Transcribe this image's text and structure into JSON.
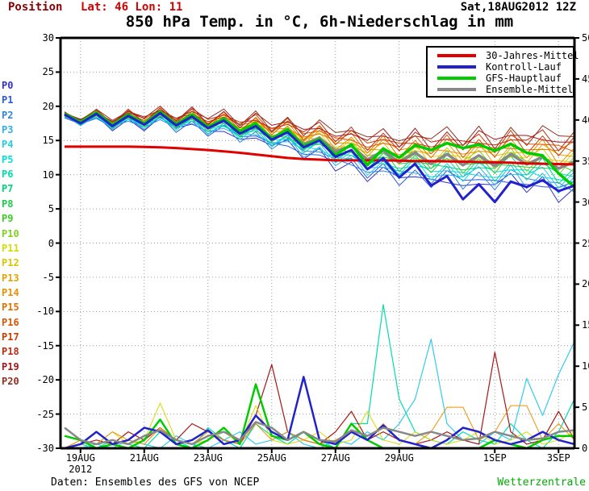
{
  "header": {
    "position_label": "Position",
    "coords": "Lat: 46 Lon: 11",
    "datetime": "Sat,18AUG2012 12Z",
    "position_color": "#8b0000",
    "coords_color": "#cc0000"
  },
  "title": "850 hPa Temp. in °C, 6h-Niederschlag in mm",
  "footer": {
    "source": "Daten: Ensembles des GFS von NCEP",
    "brand": "Wetterzentrale",
    "brand_color": "#00aa00"
  },
  "legend": {
    "items": [
      {
        "label": "30-Jahres-Mittel",
        "color": "#e00000"
      },
      {
        "label": "Kontroll-Lauf",
        "color": "#2222cc"
      },
      {
        "label": "GFS-Hauptlauf",
        "color": "#00cc00"
      },
      {
        "label": "Ensemble-Mittel",
        "color": "#888888"
      }
    ]
  },
  "chart_data": {
    "type": "line",
    "title": "850 hPa Temp. in °C, 6h-Niederschlag in mm",
    "x_step_days": 0.5,
    "x_total_days": 16,
    "xticks": [
      {
        "label": "19AUG",
        "t": 0.5
      },
      {
        "label": "21AUG",
        "t": 2.5
      },
      {
        "label": "23AUG",
        "t": 4.5
      },
      {
        "label": "25AUG",
        "t": 6.5
      },
      {
        "label": "27AUG",
        "t": 8.5
      },
      {
        "label": "29AUG",
        "t": 10.5
      },
      {
        "label": "1SEP",
        "t": 13.5
      },
      {
        "label": "3SEP",
        "t": 15.5
      }
    ],
    "year_label": "2012",
    "yaxis_left": {
      "min": -30,
      "max": 30,
      "step": 5,
      "unit": "°C"
    },
    "yaxis_right": {
      "min": 0,
      "max": 50,
      "step": 5,
      "unit": "mm"
    },
    "grid_color": "#9a9a9a",
    "temperature_series": [
      {
        "name": "30-Jahres-Mittel",
        "color": "#e00000",
        "width": 3,
        "values": [
          14.1,
          14.1,
          14.1,
          14.1,
          14.1,
          14.05,
          14.0,
          13.9,
          13.75,
          13.6,
          13.4,
          13.2,
          12.95,
          12.7,
          12.45,
          12.3,
          12.2,
          12.1,
          12.1,
          12.1,
          12.1,
          12.05,
          12.0,
          12.0,
          11.95,
          11.9,
          11.85,
          11.8,
          11.75,
          11.65,
          11.6,
          11.55,
          11.5
        ]
      },
      {
        "name": "Kontroll-Lauf",
        "color": "#2222cc",
        "width": 3,
        "values": [
          18.8,
          17.5,
          18.9,
          17.1,
          18.6,
          17.3,
          19.0,
          17.2,
          18.5,
          16.8,
          17.9,
          16.0,
          17.1,
          15.1,
          16.2,
          14.0,
          15.0,
          12.6,
          13.6,
          10.8,
          12.4,
          9.6,
          11.6,
          8.4,
          9.8,
          6.4,
          8.6,
          6.0,
          9.0,
          8.2,
          9.2,
          7.6,
          8.4
        ]
      },
      {
        "name": "GFS-Hauptlauf",
        "color": "#00cc00",
        "width": 3.5,
        "values": [
          18.9,
          17.7,
          19.1,
          17.3,
          18.8,
          17.5,
          19.2,
          17.4,
          18.8,
          17.0,
          18.2,
          16.4,
          17.5,
          15.3,
          16.6,
          14.2,
          15.2,
          12.9,
          14.4,
          11.4,
          13.8,
          12.5,
          14.3,
          13.6,
          14.6,
          13.9,
          14.4,
          13.5,
          14.5,
          13.2,
          12.8,
          10.2,
          8.2
        ]
      },
      {
        "name": "Ensemble-Mittel",
        "color": "#888888",
        "width": 3.5,
        "values": [
          18.8,
          17.6,
          18.9,
          17.2,
          18.7,
          17.4,
          19.0,
          17.3,
          18.6,
          16.9,
          18.0,
          16.2,
          17.3,
          15.4,
          16.4,
          14.4,
          15.4,
          13.4,
          14.2,
          12.2,
          13.5,
          11.8,
          13.2,
          11.6,
          13.0,
          11.4,
          12.8,
          11.3,
          13.0,
          11.5,
          12.6,
          10.9,
          11.9
        ]
      }
    ],
    "members_approx": {
      "note": "estimated ensemble member temps = mean + offset*spread + wiggle",
      "mean": [
        18.8,
        17.6,
        18.9,
        17.2,
        18.7,
        17.4,
        19.0,
        17.3,
        18.6,
        16.9,
        18.0,
        16.2,
        17.3,
        15.4,
        16.4,
        14.4,
        15.4,
        13.4,
        14.2,
        12.2,
        13.5,
        11.8,
        13.2,
        11.6,
        13.0,
        11.4,
        12.8,
        11.3,
        13.0,
        11.5,
        12.6,
        10.9,
        11.9
      ],
      "spread": [
        0.3,
        0.3,
        0.5,
        0.5,
        0.7,
        0.7,
        0.8,
        0.8,
        1.0,
        1.0,
        1.2,
        1.2,
        1.5,
        1.5,
        1.8,
        1.8,
        2.2,
        2.2,
        2.6,
        2.6,
        2.9,
        2.9,
        3.1,
        3.1,
        3.3,
        3.3,
        3.4,
        3.4,
        3.6,
        3.6,
        3.9,
        3.9,
        4.2
      ],
      "wiggle": [
        0.5,
        -0.3,
        0.6,
        -0.6,
        0.2,
        -0.5,
        0.4
      ],
      "wiggle_base": 0.35,
      "wiggle_slope": 0.045,
      "members": [
        {
          "name": "P0",
          "color": "#3333cc",
          "offset": -1.0
        },
        {
          "name": "P1",
          "color": "#2b5ce0",
          "offset": -0.9
        },
        {
          "name": "P2",
          "color": "#2e86e0",
          "offset": -0.8
        },
        {
          "name": "P3",
          "color": "#2eb1e8",
          "offset": -0.7
        },
        {
          "name": "P4",
          "color": "#21cfe3",
          "offset": -0.6
        },
        {
          "name": "P5",
          "color": "#00e3da",
          "offset": -0.5
        },
        {
          "name": "P6",
          "color": "#00ddae",
          "offset": -0.4
        },
        {
          "name": "P7",
          "color": "#00d67d",
          "offset": -0.3
        },
        {
          "name": "P8",
          "color": "#1ecc4a",
          "offset": -0.2
        },
        {
          "name": "P9",
          "color": "#3bcc24",
          "offset": -0.1
        },
        {
          "name": "P10",
          "color": "#7ed321",
          "offset": 0.0
        },
        {
          "name": "P11",
          "color": "#d9d900",
          "offset": 0.1
        },
        {
          "name": "P12",
          "color": "#e0c300",
          "offset": 0.2
        },
        {
          "name": "P13",
          "color": "#e3a600",
          "offset": 0.3
        },
        {
          "name": "P14",
          "color": "#ec9000",
          "offset": 0.4
        },
        {
          "name": "P15",
          "color": "#e37300",
          "offset": 0.5
        },
        {
          "name": "P16",
          "color": "#d95700",
          "offset": 0.6
        },
        {
          "name": "P17",
          "color": "#cc3f00",
          "offset": 0.7
        },
        {
          "name": "P18",
          "color": "#bf2d16",
          "offset": 0.8
        },
        {
          "name": "P19",
          "color": "#a61717",
          "offset": 0.9
        },
        {
          "name": "P20",
          "color": "#93301f",
          "offset": 1.0
        }
      ]
    },
    "precip_series": [
      {
        "name": "P6-member",
        "color": "#00ddae",
        "width": 1.2,
        "values": [
          0,
          0.5,
          0,
          1,
          0.5,
          0,
          2,
          1,
          0,
          2.5,
          1,
          0,
          3,
          1.5,
          0.5,
          2,
          1,
          0,
          3,
          3,
          17.5,
          6,
          2,
          1,
          0.5,
          2,
          1,
          0.5,
          3,
          1,
          0,
          2,
          6
        ]
      },
      {
        "name": "P3-member",
        "color": "#33cbee",
        "width": 1.2,
        "values": [
          0,
          0,
          0.5,
          0,
          1,
          0.5,
          0,
          1.5,
          0.5,
          0,
          1,
          2,
          0.5,
          1,
          2,
          0.5,
          0,
          1,
          0.5,
          2,
          1,
          3,
          6,
          13.3,
          3,
          1,
          0.5,
          2,
          1,
          8.5,
          4,
          9,
          13
        ]
      },
      {
        "name": "P19-member",
        "color": "#a61717",
        "width": 1.2,
        "values": [
          0,
          0.5,
          1,
          0.5,
          2,
          1,
          2.5,
          1,
          3,
          2,
          1,
          0.5,
          4,
          10.2,
          2,
          1,
          0.5,
          2,
          4.5,
          1,
          2,
          1,
          0.5,
          1,
          2,
          1,
          0.5,
          11.7,
          2,
          0.5,
          1,
          4.5,
          1
        ]
      },
      {
        "name": "P13-member",
        "color": "#d9d900",
        "width": 1,
        "values": [
          0,
          1,
          0.5,
          2,
          0.5,
          1,
          5.5,
          1,
          0.5,
          1,
          2,
          0.5,
          5.2,
          1,
          0.5,
          1,
          2,
          0.5,
          1,
          4.5,
          1,
          0.5,
          2,
          1,
          0.5,
          1,
          2,
          0.5,
          1,
          2,
          0.5,
          1,
          2
        ]
      },
      {
        "name": "P14-member",
        "color": "#ec9000",
        "width": 1,
        "values": [
          0,
          1,
          0.5,
          2,
          1,
          0.5,
          2.5,
          1,
          0.5,
          2,
          1,
          0.5,
          3,
          1,
          2,
          1,
          0.5,
          1,
          2,
          1,
          3,
          1,
          0.5,
          2,
          5,
          5,
          1,
          2,
          5.2,
          5.2,
          1,
          3,
          1
        ]
      },
      {
        "name": "GFS-Hauptlauf",
        "color": "#00cc00",
        "width": 2.5,
        "values": [
          1.5,
          1,
          0,
          0.5,
          0,
          1,
          3.5,
          0.5,
          0,
          1,
          2.5,
          0.5,
          7.8,
          1.5,
          1,
          2,
          0.5,
          0,
          3,
          1,
          0,
          0,
          0,
          0,
          0,
          0,
          0,
          1,
          0.5,
          0,
          1,
          1.5,
          1.5
        ]
      },
      {
        "name": "Kontroll-Lauf",
        "color": "#2222cc",
        "width": 2.5,
        "values": [
          0,
          0.5,
          2,
          0.5,
          1,
          2.5,
          2,
          0.5,
          1,
          2.2,
          0.5,
          1,
          4,
          2,
          1,
          8.7,
          1,
          0.5,
          2,
          1,
          2.8,
          1,
          0.5,
          0,
          1,
          2.5,
          2,
          1,
          0.5,
          1,
          2,
          1,
          0.5
        ]
      },
      {
        "name": "Ensemble-Mittel",
        "color": "#888888",
        "width": 2.5,
        "values": [
          2.5,
          1,
          0.5,
          1,
          0.5,
          1.5,
          2.2,
          1,
          0.5,
          1.5,
          2,
          1,
          3.2,
          2.5,
          1,
          2,
          1,
          0.8,
          2.2,
          1.5,
          2.5,
          2,
          1.5,
          2,
          1.5,
          1,
          1.2,
          2,
          1.5,
          1,
          1.2,
          2,
          2.2
        ]
      }
    ]
  }
}
